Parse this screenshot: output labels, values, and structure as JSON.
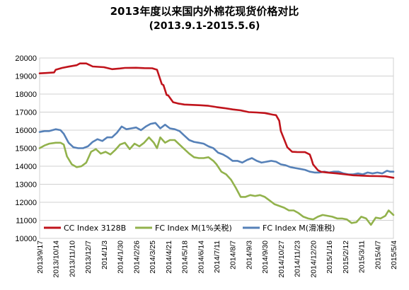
{
  "chart_data": {
    "type": "line",
    "title": "2013年度以来国内外棉花现货价格对比",
    "subtitle": "(2013.9.1-2015.5.6)",
    "xlabel": "",
    "ylabel": "",
    "ylim": [
      10000,
      20000
    ],
    "yticks": [
      "10000",
      "11000",
      "12000",
      "13000",
      "14000",
      "15000",
      "16000",
      "17000",
      "18000",
      "19000",
      "20000"
    ],
    "xticks": [
      "2013/9/17",
      "2013/10/14",
      "2013/11/10",
      "2013/12/7",
      "2014/1/3",
      "2014/1/30",
      "2014/2/26",
      "2014/3/25",
      "2014/4/21",
      "2014/5/18",
      "2014/6/14",
      "2014/7/11",
      "2014/8/7",
      "2014/9/3",
      "2014/9/30",
      "2014/10/27",
      "2014/11/23",
      "2014/12/20",
      "2015/1/16",
      "2015/2/12",
      "2015/3/11",
      "2015/4/7",
      "2015/5/4"
    ],
    "grid": "horizontal",
    "legend_position": "bottom",
    "series": [
      {
        "name": "CC Index 3128B",
        "color": "#c0141c",
        "x": [
          0,
          0.4,
          0.9,
          1.0,
          1.4,
          1.8,
          2.3,
          2.5,
          2.9,
          3.3,
          4.0,
          4.5,
          5.0,
          5.3,
          6.0,
          6.5,
          7.0,
          7.3,
          7.6,
          7.7,
          7.9,
          8.0,
          8.3,
          8.6,
          9.0,
          9.5,
          10.0,
          10.5,
          11.0,
          11.5,
          12.0,
          12.5,
          13.0,
          13.5,
          14.0,
          14.5,
          14.7,
          14.9,
          15.0,
          15.2,
          15.4,
          15.7,
          16.0,
          16.5,
          16.8,
          16.9,
          17.0,
          17.3,
          17.5,
          17.8,
          18.0,
          18.5,
          19.0,
          19.5,
          20.0,
          20.5,
          21.0,
          21.5,
          22.0
        ],
        "values": [
          19150,
          19170,
          19200,
          19350,
          19450,
          19520,
          19600,
          19700,
          19700,
          19530,
          19490,
          19380,
          19420,
          19450,
          19460,
          19440,
          19430,
          19350,
          18550,
          18500,
          17950,
          17920,
          17550,
          17480,
          17420,
          17400,
          17380,
          17350,
          17280,
          17220,
          17150,
          17100,
          17000,
          16980,
          16950,
          16860,
          16830,
          16520,
          15950,
          15500,
          15050,
          14800,
          14790,
          14780,
          14650,
          14400,
          14100,
          13780,
          13690,
          13660,
          13640,
          13600,
          13550,
          13500,
          13480,
          13460,
          13450,
          13440,
          13360
        ]
      },
      {
        "name": "FC Index M(1%关税)",
        "color": "#92b24c",
        "x": [
          0,
          0.3,
          0.6,
          1.0,
          1.3,
          1.5,
          1.7,
          2.0,
          2.3,
          2.6,
          2.9,
          3.2,
          3.5,
          3.8,
          4.1,
          4.4,
          4.7,
          5.0,
          5.3,
          5.6,
          5.9,
          6.2,
          6.5,
          6.8,
          7.1,
          7.3,
          7.5,
          7.8,
          8.1,
          8.4,
          8.7,
          9.0,
          9.3,
          9.6,
          9.9,
          10.2,
          10.5,
          10.8,
          11.0,
          11.3,
          11.6,
          11.9,
          12.2,
          12.5,
          12.8,
          13.1,
          13.4,
          13.7,
          14.0,
          14.3,
          14.6,
          14.9,
          15.2,
          15.5,
          15.8,
          16.1,
          16.4,
          16.7,
          17.0,
          17.3,
          17.6,
          17.9,
          18.2,
          18.5,
          18.8,
          19.1,
          19.4,
          19.7,
          20.0,
          20.3,
          20.6,
          20.9,
          21.2,
          21.5,
          21.7,
          22.0
        ],
        "values": [
          15000,
          15150,
          15250,
          15300,
          15300,
          15200,
          14550,
          14100,
          13950,
          14000,
          14200,
          14800,
          14950,
          14700,
          14800,
          14650,
          14900,
          15200,
          15300,
          14950,
          15250,
          15100,
          15300,
          15600,
          15300,
          15000,
          15600,
          15300,
          15450,
          15450,
          15200,
          14950,
          14700,
          14500,
          14450,
          14450,
          14500,
          14300,
          14100,
          13700,
          13550,
          13250,
          12800,
          12300,
          12300,
          12400,
          12350,
          12400,
          12300,
          12100,
          11900,
          11800,
          11700,
          11550,
          11550,
          11400,
          11200,
          11100,
          11050,
          11200,
          11300,
          11250,
          11200,
          11100,
          11100,
          11050,
          10850,
          10900,
          11200,
          11100,
          10750,
          11150,
          11100,
          11250,
          11550,
          11300
        ]
      },
      {
        "name": "FC Index M(滑准税)",
        "color": "#5681b8",
        "x": [
          0,
          0.3,
          0.6,
          1.0,
          1.3,
          1.5,
          1.8,
          2.1,
          2.4,
          2.7,
          3.0,
          3.3,
          3.6,
          3.9,
          4.2,
          4.5,
          4.8,
          5.1,
          5.4,
          5.7,
          6.0,
          6.3,
          6.6,
          6.9,
          7.2,
          7.5,
          7.8,
          8.1,
          8.4,
          8.7,
          9.0,
          9.3,
          9.6,
          9.9,
          10.2,
          10.5,
          10.8,
          11.1,
          11.4,
          11.7,
          12.0,
          12.3,
          12.6,
          12.9,
          13.2,
          13.5,
          13.8,
          14.1,
          14.4,
          14.7,
          15.0,
          15.3,
          15.6,
          15.9,
          16.2,
          16.5,
          16.8,
          17.1,
          17.4,
          17.7,
          18.0,
          18.3,
          18.6,
          18.9,
          19.2,
          19.5,
          19.8,
          20.1,
          20.4,
          20.7,
          21.0,
          21.3,
          21.6,
          21.8,
          22.0
        ],
        "values": [
          15900,
          15950,
          15950,
          16050,
          16000,
          15800,
          15300,
          15050,
          15000,
          15000,
          15100,
          15350,
          15500,
          15400,
          15600,
          15600,
          15850,
          16200,
          16050,
          16100,
          16150,
          16000,
          16200,
          16350,
          16400,
          16100,
          16300,
          16100,
          16050,
          15950,
          15700,
          15450,
          15350,
          15300,
          15250,
          15100,
          15000,
          14750,
          14650,
          14500,
          14300,
          14300,
          14200,
          14350,
          14450,
          14300,
          14200,
          14250,
          14300,
          14250,
          14100,
          14050,
          13950,
          13900,
          13850,
          13800,
          13700,
          13650,
          13650,
          13700,
          13650,
          13700,
          13700,
          13600,
          13550,
          13550,
          13600,
          13550,
          13650,
          13600,
          13650,
          13600,
          13750,
          13700,
          13700
        ]
      }
    ]
  }
}
